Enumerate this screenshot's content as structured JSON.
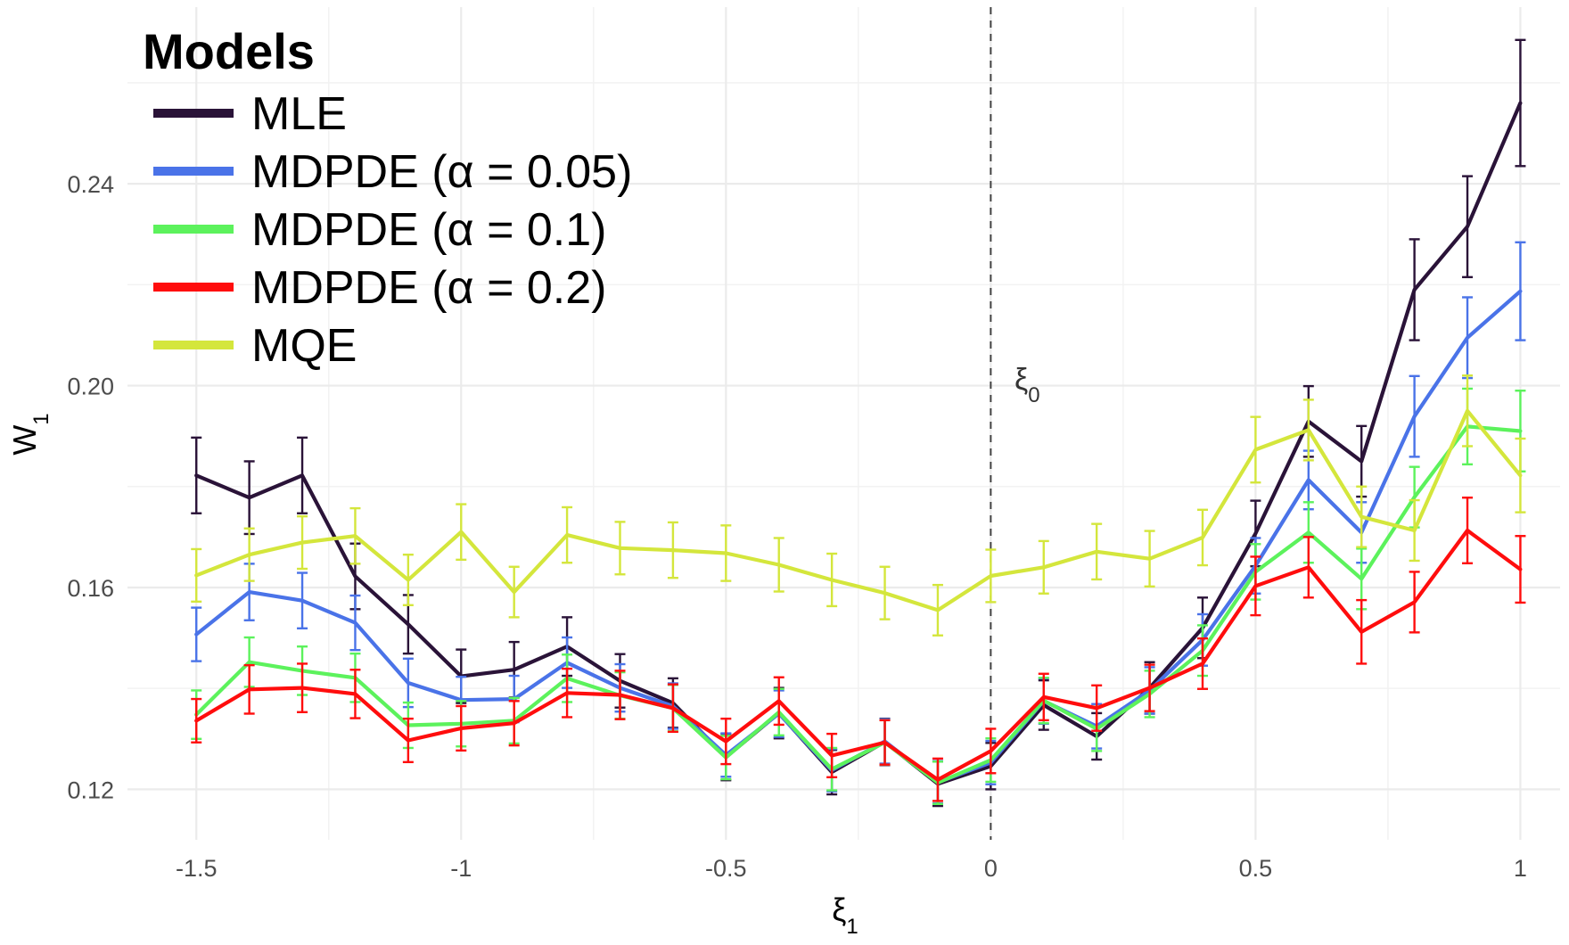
{
  "chart_data": {
    "type": "line",
    "xlabel": "ξ",
    "xlabel_sub": "1",
    "ylabel": "W",
    "ylabel_sub": "1",
    "xlim": [
      -1.63,
      1.075
    ],
    "ylim": [
      0.11,
      0.275
    ],
    "x_ticks": [
      -1.5,
      -1,
      -0.5,
      0,
      0.5,
      1
    ],
    "x_tick_labels": [
      "-1.5",
      "-1",
      "-0.5",
      "0",
      "0.5",
      "1"
    ],
    "y_ticks": [
      0.12,
      0.16,
      0.2,
      0.24
    ],
    "y_tick_labels": [
      "0.12",
      "0.16",
      "0.20",
      "0.24"
    ],
    "grid": true,
    "reference_line": {
      "x": 0,
      "style": "dashed",
      "label": "ξ",
      "label_sub": "0"
    },
    "legend": {
      "title": "Models",
      "position": "top-left"
    },
    "x": [
      -1.5,
      -1.4,
      -1.3,
      -1.2,
      -1.1,
      -1.0,
      -0.9,
      -0.8,
      -0.7,
      -0.6,
      -0.5,
      -0.4,
      -0.3,
      -0.2,
      -0.1,
      0.0,
      0.1,
      0.2,
      0.3,
      0.4,
      0.5,
      0.6,
      0.7,
      0.8,
      0.9,
      1.0
    ],
    "series": [
      {
        "name": "MLE",
        "color": "#2a1338",
        "values": [
          0.1822,
          0.1778,
          0.1822,
          0.1622,
          0.1527,
          0.1424,
          0.1437,
          0.1483,
          0.1415,
          0.1371,
          0.1264,
          0.1351,
          0.1234,
          0.1294,
          0.1211,
          0.1246,
          0.1367,
          0.1305,
          0.1401,
          0.152,
          0.1707,
          0.1929,
          0.185,
          0.219,
          0.2315,
          0.256
        ],
        "errors": [
          0.0075,
          0.0072,
          0.0075,
          0.0065,
          0.0058,
          0.0053,
          0.0055,
          0.0058,
          0.0053,
          0.0049,
          0.0046,
          0.005,
          0.0044,
          0.0046,
          0.0044,
          0.0046,
          0.0049,
          0.0046,
          0.0051,
          0.006,
          0.0065,
          0.007,
          0.007,
          0.01,
          0.01,
          0.0125
        ]
      },
      {
        "name": "MDPDE (α = 0.05)",
        "color": "#4a73e8",
        "values": [
          0.1507,
          0.1591,
          0.1574,
          0.153,
          0.1411,
          0.1377,
          0.1379,
          0.1451,
          0.1401,
          0.1365,
          0.1268,
          0.135,
          0.1238,
          0.1295,
          0.1214,
          0.1253,
          0.1375,
          0.1325,
          0.1396,
          0.1496,
          0.1643,
          0.1813,
          0.1709,
          0.1939,
          0.2095,
          0.2187
        ],
        "errors": [
          0.0053,
          0.0056,
          0.0055,
          0.0054,
          0.0048,
          0.0046,
          0.0046,
          0.005,
          0.0047,
          0.0045,
          0.0043,
          0.0046,
          0.0042,
          0.0044,
          0.0042,
          0.0043,
          0.0045,
          0.0044,
          0.0046,
          0.0051,
          0.0055,
          0.0058,
          0.006,
          0.008,
          0.008,
          0.0097
        ]
      },
      {
        "name": "MDPDE (α = 0.1)",
        "color": "#5cf25c",
        "values": [
          0.1348,
          0.1452,
          0.1435,
          0.1421,
          0.1327,
          0.133,
          0.1336,
          0.142,
          0.1386,
          0.1361,
          0.1263,
          0.1353,
          0.124,
          0.1293,
          0.1213,
          0.1258,
          0.1376,
          0.132,
          0.1389,
          0.1475,
          0.1631,
          0.1709,
          0.1617,
          0.1779,
          0.1919,
          0.191
        ],
        "errors": [
          0.0048,
          0.0049,
          0.0048,
          0.0048,
          0.0045,
          0.0045,
          0.0045,
          0.0047,
          0.0046,
          0.0046,
          0.0043,
          0.0046,
          0.0042,
          0.0044,
          0.0042,
          0.0043,
          0.0045,
          0.0044,
          0.0046,
          0.005,
          0.0055,
          0.006,
          0.006,
          0.006,
          0.0075,
          0.008
        ]
      },
      {
        "name": "MDPDE (α = 0.2)",
        "color": "#ff0d0d",
        "values": [
          0.1336,
          0.1398,
          0.1401,
          0.1389,
          0.1297,
          0.1321,
          0.1331,
          0.1391,
          0.1387,
          0.1361,
          0.1295,
          0.1375,
          0.1267,
          0.1293,
          0.1219,
          0.1276,
          0.1383,
          0.1361,
          0.1401,
          0.1449,
          0.1603,
          0.164,
          0.1512,
          0.1571,
          0.1713,
          0.1636
        ],
        "errors": [
          0.0043,
          0.0048,
          0.0048,
          0.0048,
          0.0043,
          0.0044,
          0.0044,
          0.0048,
          0.0048,
          0.0047,
          0.0045,
          0.0047,
          0.0043,
          0.0044,
          0.0042,
          0.0044,
          0.0046,
          0.0045,
          0.0046,
          0.005,
          0.0058,
          0.006,
          0.0063,
          0.006,
          0.0065,
          0.0066
        ]
      },
      {
        "name": "MQE",
        "color": "#d4e63c",
        "values": [
          0.1624,
          0.1665,
          0.1689,
          0.1702,
          0.1615,
          0.171,
          0.1591,
          0.1704,
          0.1678,
          0.1674,
          0.1668,
          0.1645,
          0.1615,
          0.1589,
          0.1555,
          0.1623,
          0.164,
          0.1671,
          0.1657,
          0.1699,
          0.1873,
          0.1912,
          0.174,
          0.1713,
          0.195,
          0.1822
        ],
        "errors": [
          0.0052,
          0.0052,
          0.0052,
          0.0055,
          0.005,
          0.0055,
          0.005,
          0.0055,
          0.0052,
          0.0055,
          0.0055,
          0.0053,
          0.0052,
          0.0052,
          0.005,
          0.0052,
          0.0052,
          0.0055,
          0.0055,
          0.0055,
          0.0065,
          0.006,
          0.006,
          0.006,
          0.007,
          0.0073
        ]
      }
    ]
  }
}
